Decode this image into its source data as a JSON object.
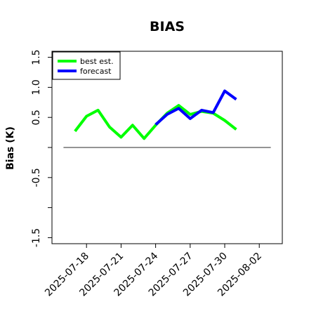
{
  "chart_data": {
    "type": "line",
    "title": "BIAS",
    "xlabel": "",
    "ylabel": "Bias (K)",
    "ylim": [
      -1.6,
      1.6
    ],
    "xlim": [
      "2025-07-15",
      "2025-08-04"
    ],
    "yticks": [
      {
        "value": 1.5,
        "label": "1.5"
      },
      {
        "value": 1.0,
        "label": "1.0"
      },
      {
        "value": 0.5,
        "label": "0.5"
      },
      {
        "value": 0.0,
        "label": ""
      },
      {
        "value": -0.5,
        "label": "-0.5"
      },
      {
        "value": -1.0,
        "label": ""
      },
      {
        "value": -1.5,
        "label": "-1.5"
      }
    ],
    "xticks": [
      {
        "date": "2025-07-18",
        "label": "2025-07-18",
        "color": "#000000"
      },
      {
        "date": "2025-07-21",
        "label": "2025-07-21",
        "color": "#000000"
      },
      {
        "date": "2025-07-24",
        "label": "2025-07-24",
        "color": "#228B22"
      },
      {
        "date": "2025-07-27",
        "label": "2025-07-27",
        "color": "#000000"
      },
      {
        "date": "2025-07-30",
        "label": "2025-07-30",
        "color": "#000000"
      },
      {
        "date": "2025-08-02",
        "label": "2025-08-02",
        "color": "#000000"
      }
    ],
    "reference_line": {
      "y": 0.0,
      "from": "2025-07-16",
      "to": "2025-08-03",
      "color": "#555555"
    },
    "legend": {
      "position": "top-left"
    },
    "series": [
      {
        "name": "best est.",
        "color": "#00ff00",
        "points": [
          {
            "x": "2025-07-17",
            "y": 0.27
          },
          {
            "x": "2025-07-18",
            "y": 0.52
          },
          {
            "x": "2025-07-19",
            "y": 0.62
          },
          {
            "x": "2025-07-20",
            "y": 0.34
          },
          {
            "x": "2025-07-21",
            "y": 0.17
          },
          {
            "x": "2025-07-22",
            "y": 0.37
          },
          {
            "x": "2025-07-23",
            "y": 0.15
          },
          {
            "x": "2025-07-24",
            "y": 0.37
          },
          {
            "x": "2025-07-25",
            "y": 0.57
          },
          {
            "x": "2025-07-26",
            "y": 0.7
          },
          {
            "x": "2025-07-27",
            "y": 0.55
          },
          {
            "x": "2025-07-28",
            "y": 0.6
          },
          {
            "x": "2025-07-29",
            "y": 0.57
          },
          {
            "x": "2025-07-30",
            "y": 0.45
          },
          {
            "x": "2025-07-31",
            "y": 0.3
          }
        ]
      },
      {
        "name": "forecast",
        "color": "#0000ff",
        "points": [
          {
            "x": "2025-07-24",
            "y": 0.38
          },
          {
            "x": "2025-07-25",
            "y": 0.55
          },
          {
            "x": "2025-07-26",
            "y": 0.65
          },
          {
            "x": "2025-07-27",
            "y": 0.48
          },
          {
            "x": "2025-07-28",
            "y": 0.62
          },
          {
            "x": "2025-07-29",
            "y": 0.58
          },
          {
            "x": "2025-07-30",
            "y": 0.94
          },
          {
            "x": "2025-07-31",
            "y": 0.8
          }
        ]
      }
    ]
  }
}
